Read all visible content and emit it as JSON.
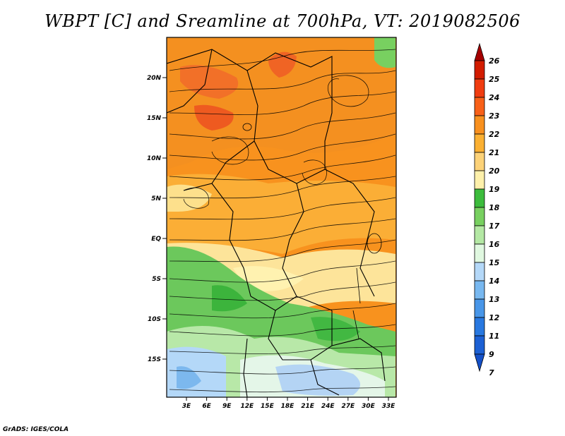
{
  "title": "WBPT [C] and Sreamline at 700hPa, VT: 2019082506",
  "credit": "GrADS: IGES/COLA",
  "map": {
    "lat_ticks": [
      "20N",
      "15N",
      "10N",
      "5N",
      "EQ",
      "5S",
      "10S",
      "15S"
    ],
    "lon_ticks": [
      "3E",
      "6E",
      "9E",
      "12E",
      "15E",
      "18E",
      "21E",
      "24E",
      "27E",
      "30E",
      "33E"
    ]
  },
  "colorbar": {
    "labels": [
      "26",
      "25",
      "24",
      "23",
      "22",
      "21",
      "20",
      "19",
      "18",
      "17",
      "16",
      "15",
      "14",
      "13",
      "12",
      "11",
      "9",
      "7"
    ],
    "colors": [
      "#a50000",
      "#d21c00",
      "#f03c10",
      "#f86018",
      "#f8901e",
      "#fbb032",
      "#fcd278",
      "#fef0aa",
      "#3cbc3c",
      "#78d060",
      "#b4e8a4",
      "#e0f8e0",
      "#b4d8f8",
      "#78b8f0",
      "#4896e8",
      "#2878e0",
      "#1c60d4",
      "#1450c8"
    ]
  }
}
